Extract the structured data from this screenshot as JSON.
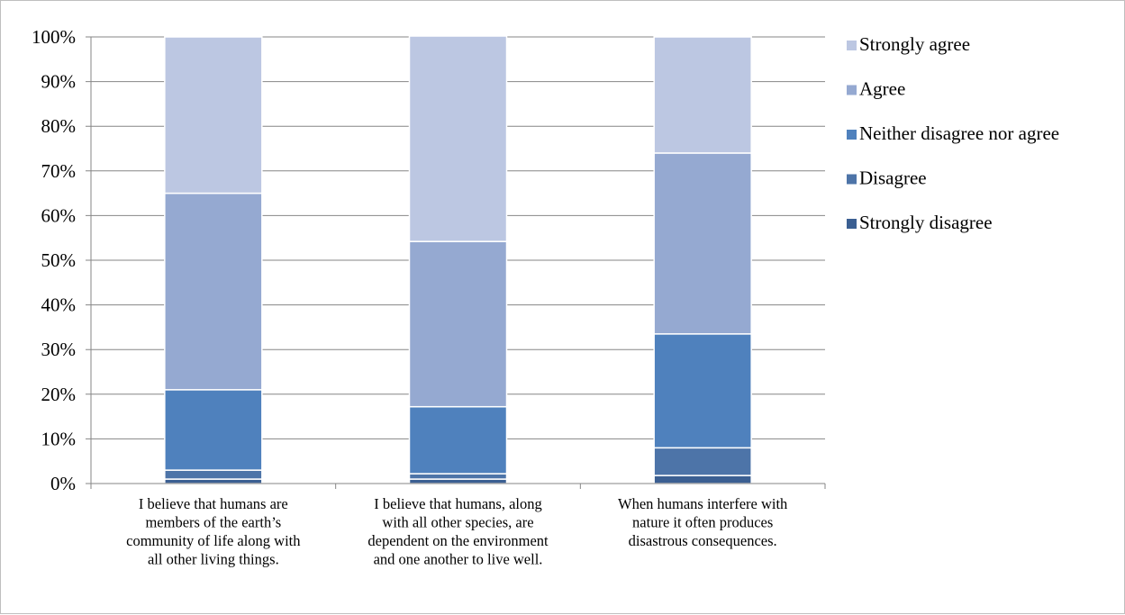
{
  "chart_data": {
    "type": "bar",
    "stacked": true,
    "percent": true,
    "categories": [
      [
        "I believe that humans are",
        "members of the earth’s",
        "community of life along with",
        "all other living things."
      ],
      [
        "I believe that humans, along",
        "with all other species, are",
        "dependent on the environment",
        "and one another to live well."
      ],
      [
        "When humans interfere with",
        "nature it often produces",
        "disastrous consequences."
      ]
    ],
    "series": [
      {
        "name": "Strongly disagree",
        "color": "#3b5f92",
        "values": [
          1,
          1,
          1.8
        ]
      },
      {
        "name": "Disagree",
        "color": "#4d74a8",
        "values": [
          2,
          1.2,
          6.2
        ]
      },
      {
        "name": "Neither disagree nor agree",
        "color": "#4f81bd",
        "values": [
          18,
          15,
          25.5
        ]
      },
      {
        "name": "Agree",
        "color": "#95a9d1",
        "values": [
          44,
          37,
          40.5
        ]
      },
      {
        "name": "Strongly agree",
        "color": "#bcc7e2",
        "values": [
          35,
          46,
          26
        ]
      }
    ],
    "ylim": [
      0,
      100
    ],
    "yticks": [
      "0%",
      "10%",
      "20%",
      "30%",
      "40%",
      "50%",
      "60%",
      "70%",
      "80%",
      "90%",
      "100%"
    ],
    "grid": true,
    "legend_position": "right"
  }
}
